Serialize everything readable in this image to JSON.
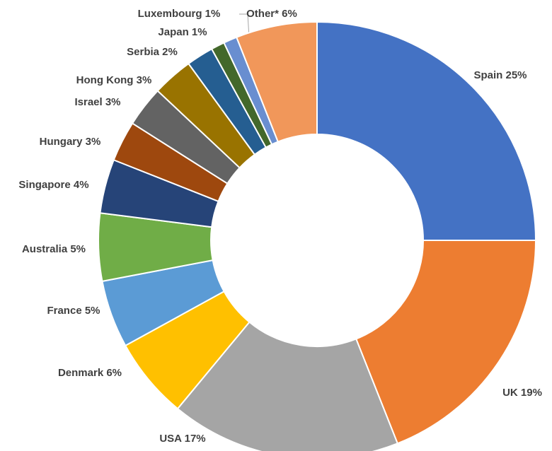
{
  "chart_data": {
    "type": "donut",
    "categories": [
      "Spain",
      "UK",
      "USA",
      "Denmark",
      "France",
      "Australia",
      "Singapore",
      "Hungary",
      "Israel",
      "Hong Kong",
      "Serbia",
      "Japan",
      "Luxembourg",
      "Other*"
    ],
    "values": [
      25,
      19,
      17,
      6,
      5,
      5,
      4,
      3,
      3,
      3,
      2,
      1,
      1,
      6
    ],
    "value_labels": [
      "25%",
      "19%",
      "17%",
      "6%",
      "5%",
      "5%",
      "4%",
      "3%",
      "3%",
      "3%",
      "2%",
      "1%",
      "1%",
      "6%"
    ],
    "colors": [
      "#4472c4",
      "#ed7d31",
      "#a5a5a5",
      "#ffc000",
      "#5b9bd5",
      "#70ad47",
      "#264478",
      "#9e480e",
      "#636363",
      "#997300",
      "#255e91",
      "#43682b",
      "#698ed0",
      "#f1975a"
    ]
  }
}
